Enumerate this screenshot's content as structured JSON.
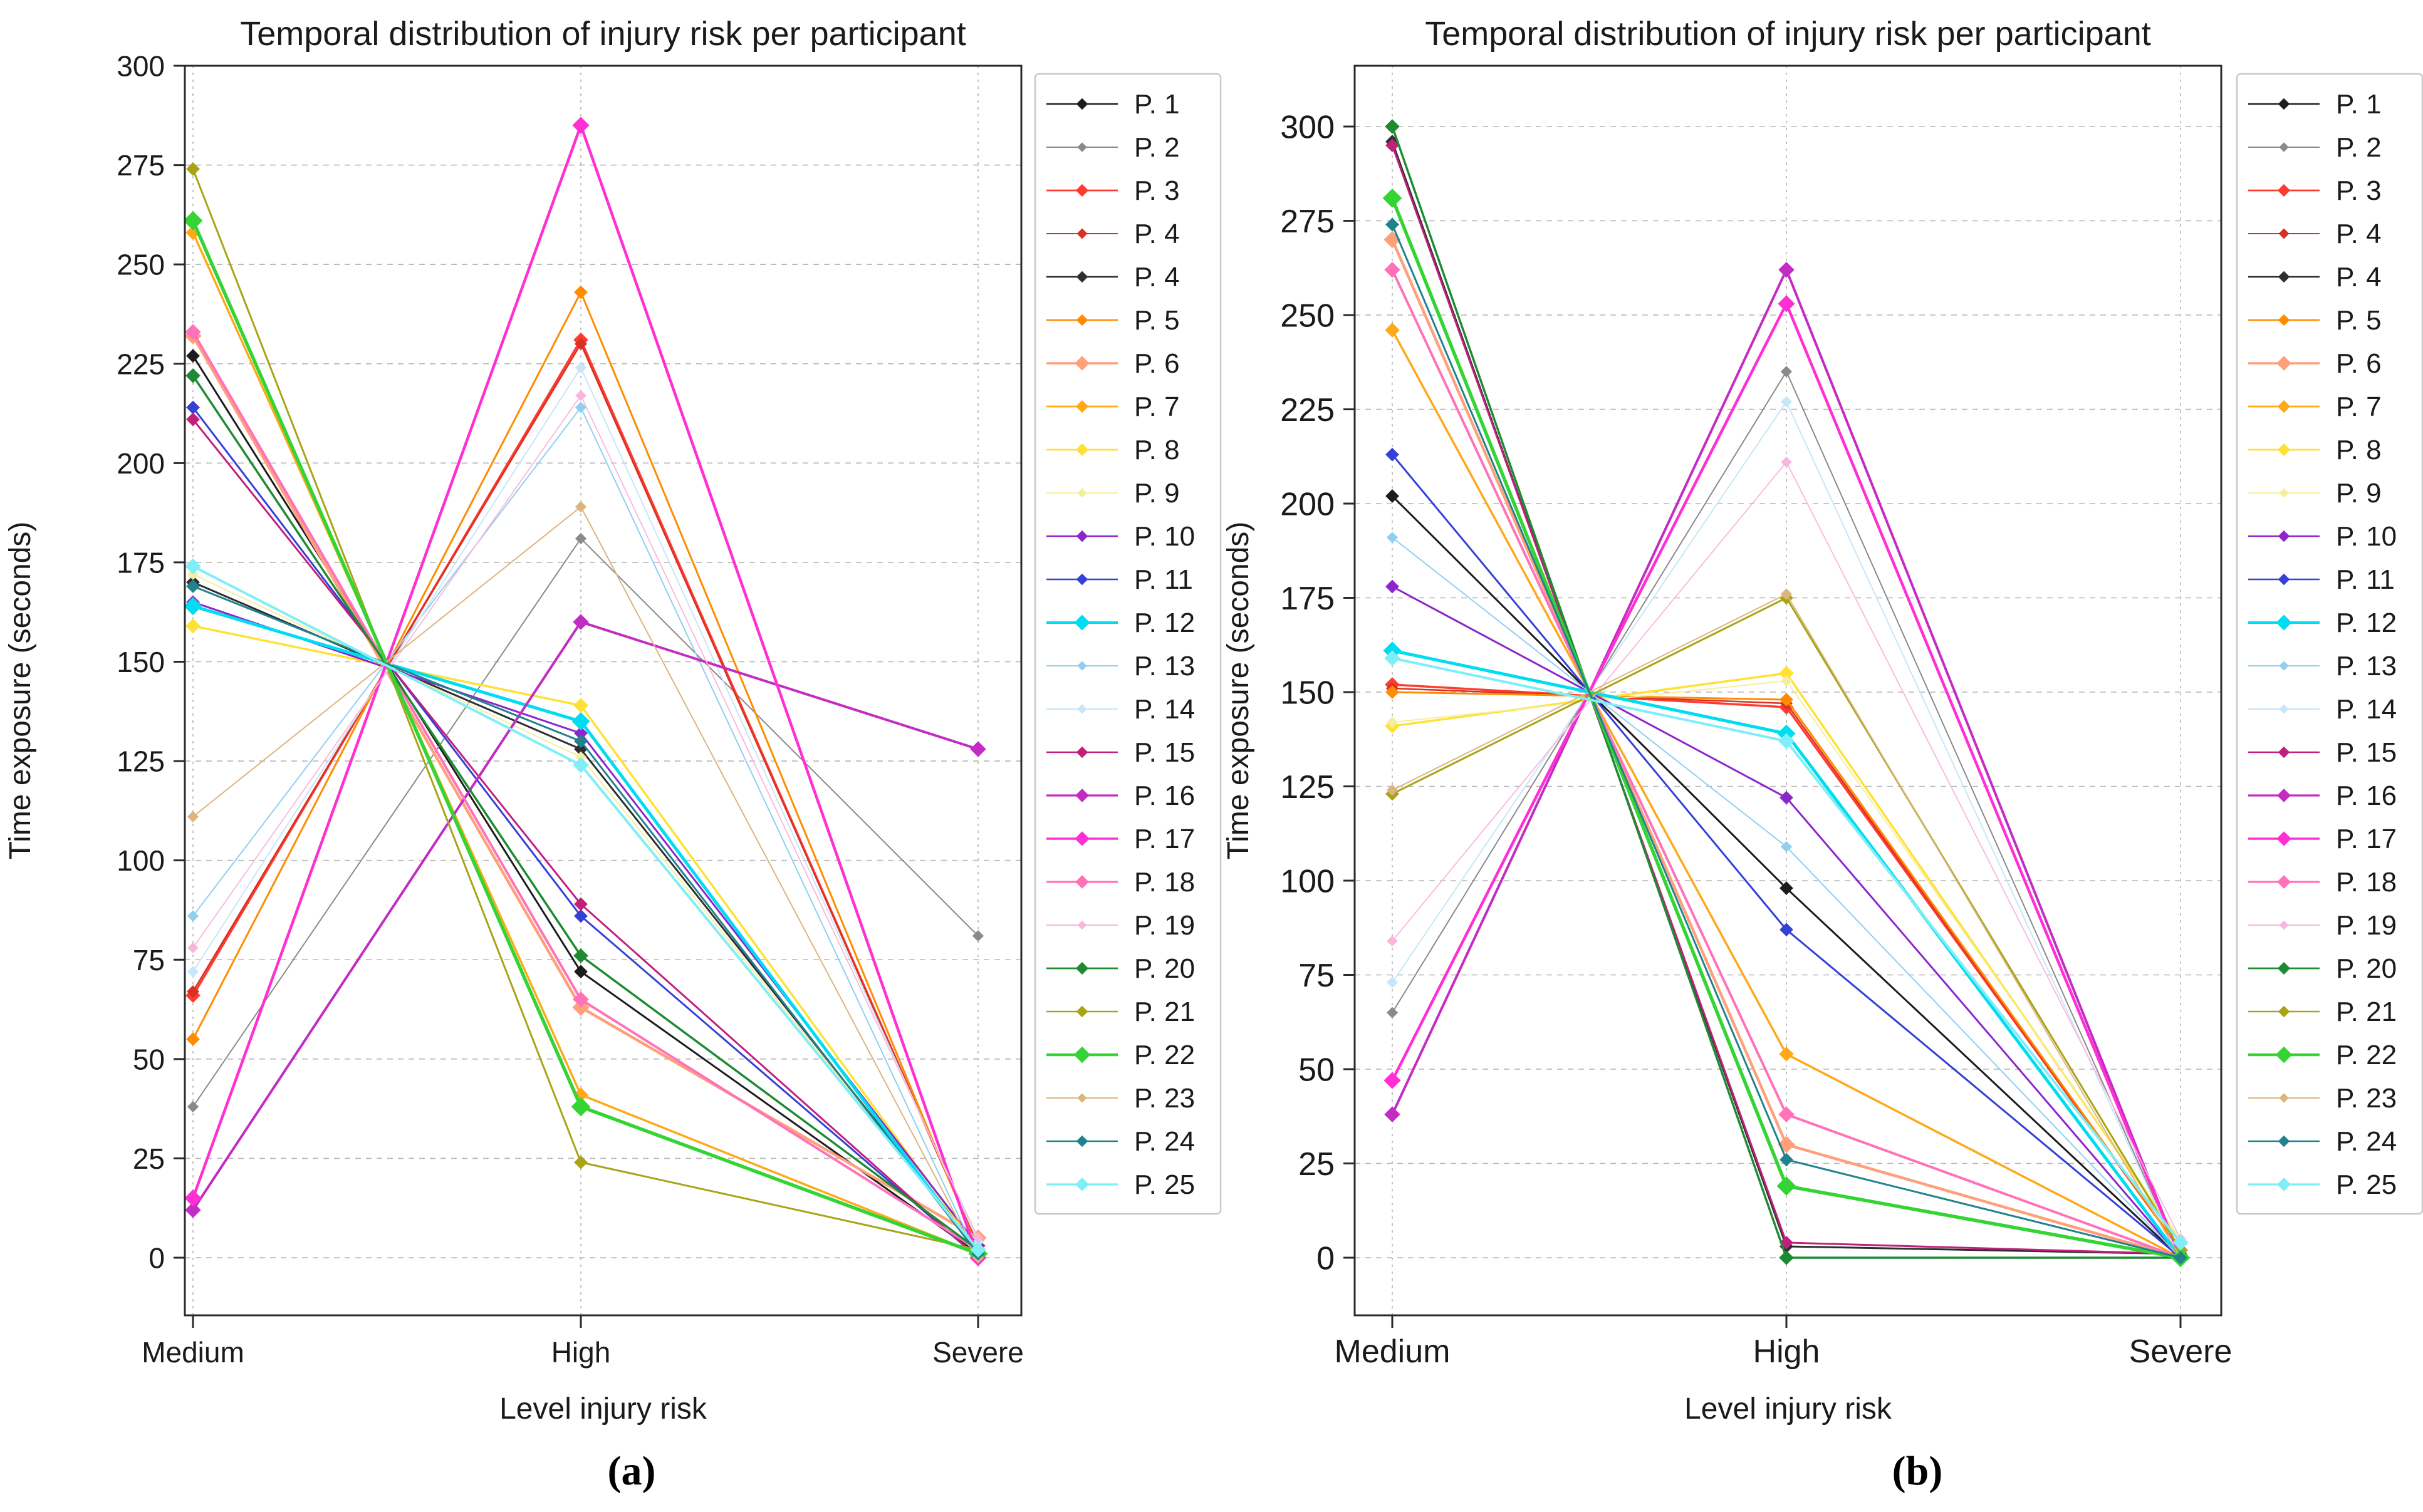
{
  "figure_title": "Temporal distribution of injury risk per participant",
  "chart_data": [
    {
      "type": "line",
      "panel": "a",
      "caption": "(a)",
      "title": "Temporal distribution of injury risk per participant",
      "xlabel": "Level injury risk",
      "ylabel": "Time exposure (seconds)",
      "categories": [
        "Medium",
        "High",
        "Severe"
      ],
      "yticks": [
        300,
        275,
        250,
        225,
        200,
        175,
        150,
        125,
        100,
        75,
        50,
        25,
        0
      ],
      "ylim": [
        -15,
        300
      ],
      "grid": true,
      "legend_position": "right",
      "series": [
        {
          "name": "P. 1",
          "color": "#1c1c1c",
          "width": 3,
          "values": [
            227,
            72,
            1
          ]
        },
        {
          "name": "P. 2",
          "color": "#8a8a8a",
          "width": 2,
          "values": [
            38,
            181,
            81
          ]
        },
        {
          "name": "P. 3",
          "color": "#ff3b30",
          "width": 3.5,
          "values": [
            66,
            231,
            3
          ]
        },
        {
          "name": "P. 4",
          "color": "#d93025",
          "width": 2.5,
          "values": [
            67,
            230,
            3
          ]
        },
        {
          "name": "P. 4",
          "color": "#2e2e2e",
          "width": 3,
          "values": [
            170,
            128,
            2
          ]
        },
        {
          "name": "P. 5",
          "color": "#ff8c00",
          "width": 3,
          "values": [
            55,
            243,
            2
          ]
        },
        {
          "name": "P. 6",
          "color": "#ffa07a",
          "width": 4.5,
          "values": [
            232,
            63,
            5
          ]
        },
        {
          "name": "P. 7",
          "color": "#ffa818",
          "width": 3.5,
          "values": [
            258,
            41,
            1
          ]
        },
        {
          "name": "P. 8",
          "color": "#ffe135",
          "width": 3.5,
          "values": [
            159,
            139,
            2
          ]
        },
        {
          "name": "P. 9",
          "color": "#f4ef9e",
          "width": 2,
          "values": [
            172,
            126,
            2
          ]
        },
        {
          "name": "P. 10",
          "color": "#8d25cc",
          "width": 3,
          "values": [
            165,
            132,
            3
          ]
        },
        {
          "name": "P. 11",
          "color": "#3440d6",
          "width": 3,
          "values": [
            214,
            86,
            0
          ]
        },
        {
          "name": "P. 12",
          "color": "#00dcf0",
          "width": 5,
          "values": [
            164,
            135,
            1
          ]
        },
        {
          "name": "P. 13",
          "color": "#8fd0f2",
          "width": 2,
          "values": [
            86,
            214,
            0
          ]
        },
        {
          "name": "P. 14",
          "color": "#c7e6f7",
          "width": 2,
          "values": [
            72,
            224,
            4
          ]
        },
        {
          "name": "P. 15",
          "color": "#c21f7d",
          "width": 3,
          "values": [
            211,
            89,
            0
          ]
        },
        {
          "name": "P. 16",
          "color": "#c32cc3",
          "width": 4,
          "values": [
            12,
            160,
            128
          ]
        },
        {
          "name": "P. 17",
          "color": "#ff2fd4",
          "width": 4.5,
          "values": [
            15,
            285,
            0
          ]
        },
        {
          "name": "P. 18",
          "color": "#ff72b9",
          "width": 4,
          "values": [
            233,
            65,
            2
          ]
        },
        {
          "name": "P. 19",
          "color": "#f9b6dc",
          "width": 1.8,
          "values": [
            78,
            217,
            5
          ]
        },
        {
          "name": "P. 20",
          "color": "#1e8b32",
          "width": 3.5,
          "values": [
            222,
            76,
            2
          ]
        },
        {
          "name": "P. 21",
          "color": "#a8a416",
          "width": 3,
          "values": [
            274,
            24,
            2
          ]
        },
        {
          "name": "P. 22",
          "color": "#35d435",
          "width": 5.5,
          "values": [
            261,
            38,
            1
          ]
        },
        {
          "name": "P. 23",
          "color": "#dcb57e",
          "width": 2,
          "values": [
            111,
            189,
            0
          ]
        },
        {
          "name": "P. 24",
          "color": "#20828c",
          "width": 3,
          "values": [
            169,
            130,
            1
          ]
        },
        {
          "name": "P. 25",
          "color": "#7feef7",
          "width": 4,
          "values": [
            174,
            124,
            2
          ]
        }
      ]
    },
    {
      "type": "line",
      "panel": "b",
      "caption": "(b)",
      "title": "Temporal distribution of injury risk per participant",
      "xlabel": "Level injury risk",
      "ylabel": "Time exposure (seconds)",
      "categories": [
        "Medium",
        "High",
        "Severe"
      ],
      "yticks": [
        300,
        275,
        250,
        225,
        200,
        175,
        150,
        125,
        100,
        75,
        50,
        25,
        0
      ],
      "ylim": [
        -14,
        316
      ],
      "grid": true,
      "legend_position": "right",
      "series": [
        {
          "name": "P. 1",
          "color": "#1c1c1c",
          "width": 3,
          "values": [
            202,
            98,
            0
          ]
        },
        {
          "name": "P. 2",
          "color": "#8a8a8a",
          "width": 2,
          "values": [
            65,
            235,
            0
          ]
        },
        {
          "name": "P. 3",
          "color": "#ff3b30",
          "width": 3.5,
          "values": [
            152,
            146,
            2
          ]
        },
        {
          "name": "P. 4",
          "color": "#d93025",
          "width": 2.5,
          "values": [
            151,
            147,
            2
          ]
        },
        {
          "name": "P. 4",
          "color": "#2e2e2e",
          "width": 3,
          "values": [
            296,
            3,
            1
          ]
        },
        {
          "name": "P. 5",
          "color": "#ff8c00",
          "width": 3,
          "values": [
            150,
            148,
            2
          ]
        },
        {
          "name": "P. 6",
          "color": "#ffa07a",
          "width": 4.5,
          "values": [
            270,
            30,
            0
          ]
        },
        {
          "name": "P. 7",
          "color": "#ffa818",
          "width": 3.5,
          "values": [
            246,
            54,
            0
          ]
        },
        {
          "name": "P. 8",
          "color": "#ffe135",
          "width": 3.5,
          "values": [
            141,
            155,
            4
          ]
        },
        {
          "name": "P. 9",
          "color": "#f4ef9e",
          "width": 2,
          "values": [
            142,
            153,
            5
          ]
        },
        {
          "name": "P. 10",
          "color": "#8d25cc",
          "width": 3,
          "values": [
            178,
            122,
            0
          ]
        },
        {
          "name": "P. 11",
          "color": "#3440d6",
          "width": 3,
          "values": [
            213,
            87,
            0
          ]
        },
        {
          "name": "P. 12",
          "color": "#00dcf0",
          "width": 5,
          "values": [
            161,
            139,
            0
          ]
        },
        {
          "name": "P. 13",
          "color": "#8fd0f2",
          "width": 2,
          "values": [
            191,
            109,
            0
          ]
        },
        {
          "name": "P. 14",
          "color": "#c7e6f7",
          "width": 2,
          "values": [
            73,
            227,
            0
          ]
        },
        {
          "name": "P. 15",
          "color": "#c21f7d",
          "width": 3,
          "values": [
            295,
            4,
            1
          ]
        },
        {
          "name": "P. 16",
          "color": "#c32cc3",
          "width": 4,
          "values": [
            38,
            262,
            0
          ]
        },
        {
          "name": "P. 17",
          "color": "#ff2fd4",
          "width": 4.5,
          "values": [
            47,
            253,
            0
          ]
        },
        {
          "name": "P. 18",
          "color": "#ff72b9",
          "width": 4,
          "values": [
            262,
            38,
            0
          ]
        },
        {
          "name": "P. 19",
          "color": "#f9b6dc",
          "width": 1.8,
          "values": [
            84,
            211,
            5
          ]
        },
        {
          "name": "P. 20",
          "color": "#1e8b32",
          "width": 3.5,
          "values": [
            300,
            0,
            0
          ]
        },
        {
          "name": "P. 21",
          "color": "#a8a416",
          "width": 3,
          "values": [
            123,
            175,
            2
          ]
        },
        {
          "name": "P. 22",
          "color": "#35d435",
          "width": 5.5,
          "values": [
            281,
            19,
            0
          ]
        },
        {
          "name": "P. 23",
          "color": "#dcb57e",
          "width": 2,
          "values": [
            124,
            176,
            0
          ]
        },
        {
          "name": "P. 24",
          "color": "#20828c",
          "width": 3,
          "values": [
            274,
            26,
            0
          ]
        },
        {
          "name": "P. 25",
          "color": "#7feef7",
          "width": 4,
          "values": [
            159,
            137,
            4
          ]
        }
      ]
    }
  ],
  "style": {
    "grid_color": "#b5b5b5",
    "spine_color": "#2a2a2a",
    "text_color": "#1a1a1a",
    "legend_border_color": "#c9c9c9"
  }
}
